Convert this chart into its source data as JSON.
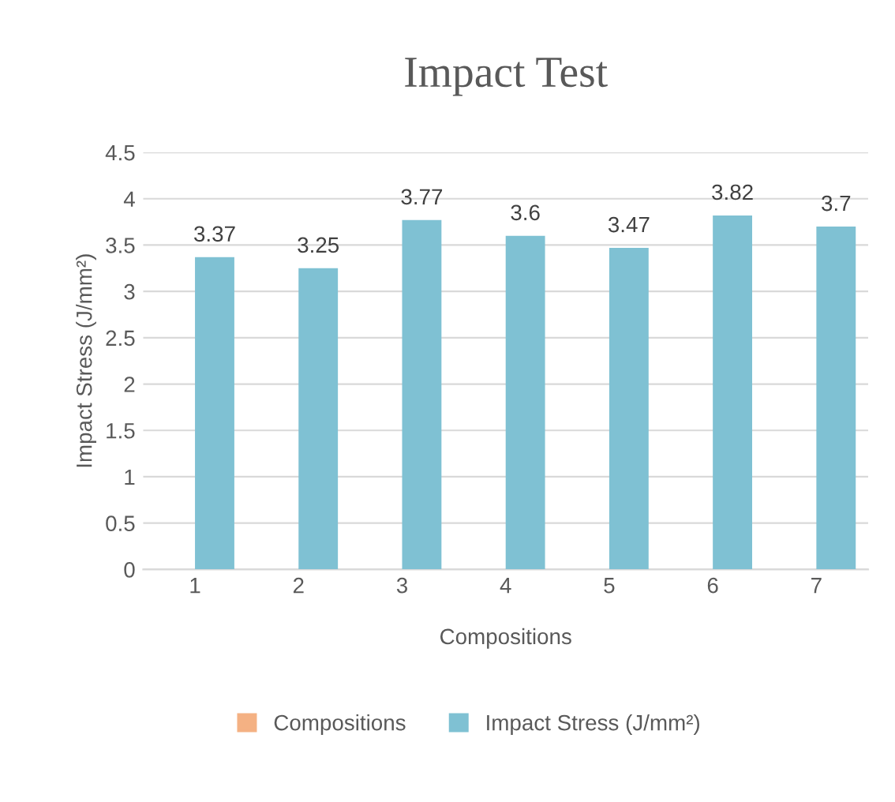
{
  "chart_data": {
    "type": "bar",
    "title": "Impact Test",
    "xlabel": "Compositions",
    "ylabel": "Impact Stress (J/mm²)",
    "categories": [
      "1",
      "2",
      "3",
      "4",
      "5",
      "6",
      "7"
    ],
    "series": [
      {
        "name": "Compositions",
        "color": "#f4b183",
        "values": [
          null,
          null,
          null,
          null,
          null,
          null,
          null
        ]
      },
      {
        "name": "Impact Stress (J/mm²)",
        "color": "#7fc1d3",
        "values": [
          3.37,
          3.25,
          3.77,
          3.6,
          3.47,
          3.82,
          3.7
        ]
      }
    ],
    "ylim": [
      0,
      4.5
    ],
    "yticks": [
      0,
      0.5,
      1,
      1.5,
      2,
      2.5,
      3,
      3.5,
      4,
      4.5
    ],
    "grid": "y",
    "legend": "bottom",
    "data_labels": true
  }
}
